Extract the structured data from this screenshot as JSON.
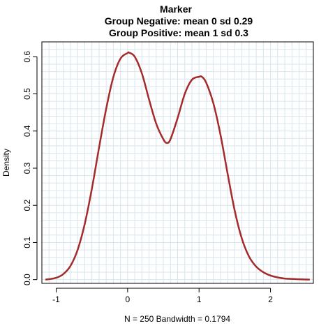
{
  "chart_data": {
    "type": "line",
    "title": "Marker",
    "subtitle_lines": [
      "Group Negative: mean 0 sd 0.29",
      "Group Positive: mean 1 sd 0.3"
    ],
    "xlabel": "N = 250   Bandwidth = 0.1794",
    "ylabel": "Density",
    "xlim": [
      -1.2,
      2.6
    ],
    "ylim": [
      -0.01,
      0.64
    ],
    "x_ticks": [
      -1,
      0,
      1,
      2
    ],
    "x_tick_labels": [
      "-1",
      "0",
      "1",
      "2"
    ],
    "y_ticks": [
      0.0,
      0.1,
      0.2,
      0.3,
      0.4,
      0.5,
      0.6
    ],
    "y_tick_labels": [
      "0.0",
      "0.1",
      "0.2",
      "0.3",
      "0.4",
      "0.5",
      "0.6"
    ],
    "grid": true,
    "colors": {
      "line": "#a52a2a",
      "grid": "#d6e6ef",
      "frame": "#000000"
    },
    "series": [
      {
        "x": [
          -1.15,
          -1.0,
          -0.9,
          -0.8,
          -0.7,
          -0.6,
          -0.5,
          -0.4,
          -0.3,
          -0.2,
          -0.1,
          0.0,
          0.02,
          0.1,
          0.2,
          0.3,
          0.4,
          0.5,
          0.55,
          0.6,
          0.7,
          0.8,
          0.9,
          1.0,
          1.04,
          1.1,
          1.2,
          1.3,
          1.4,
          1.5,
          1.6,
          1.7,
          1.8,
          1.9,
          2.0,
          2.1,
          2.2,
          2.3,
          2.4,
          2.55
        ],
        "values": [
          0.0,
          0.005,
          0.015,
          0.037,
          0.08,
          0.15,
          0.245,
          0.355,
          0.46,
          0.545,
          0.595,
          0.61,
          0.611,
          0.6,
          0.555,
          0.485,
          0.42,
          0.378,
          0.368,
          0.378,
          0.435,
          0.5,
          0.538,
          0.546,
          0.546,
          0.53,
          0.475,
          0.39,
          0.285,
          0.185,
          0.11,
          0.062,
          0.035,
          0.02,
          0.011,
          0.006,
          0.003,
          0.002,
          0.001,
          0.0
        ]
      }
    ]
  }
}
